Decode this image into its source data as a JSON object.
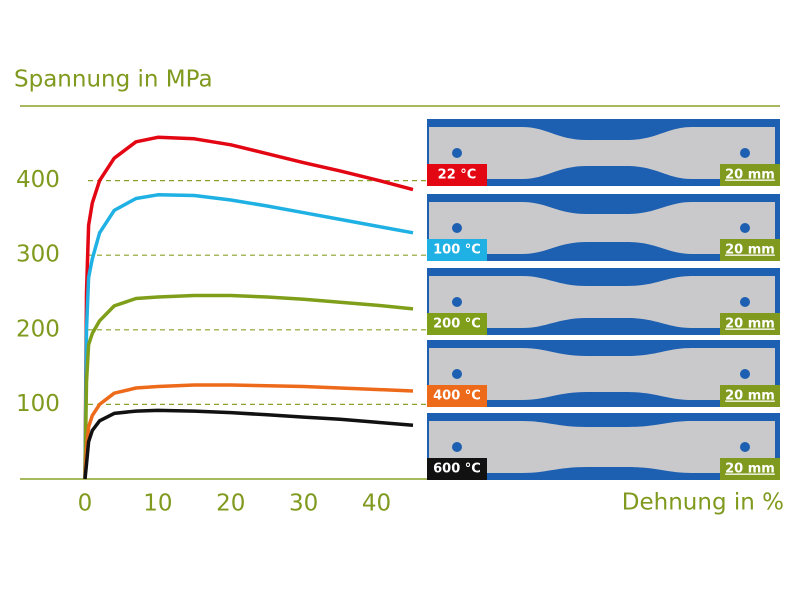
{
  "chart_data": {
    "type": "line",
    "y_label": "Spannung in MPa",
    "x_label": "Dehnung in %",
    "x": [
      0,
      0.2,
      0.5,
      1,
      2,
      4,
      7,
      10,
      15,
      20,
      25,
      30,
      35,
      40,
      45
    ],
    "series": [
      {
        "name": "22 °C",
        "color": "#e30613",
        "values": [
          0,
          250,
          340,
          370,
          400,
          430,
          452,
          458,
          456,
          448,
          436,
          424,
          413,
          401,
          388
        ]
      },
      {
        "name": "100 °C",
        "color": "#1fb1e3",
        "values": [
          0,
          200,
          270,
          295,
          330,
          360,
          376,
          381,
          380,
          374,
          366,
          357,
          348,
          339,
          330
        ]
      },
      {
        "name": "200 °C",
        "color": "#7f9f1b",
        "values": [
          0,
          130,
          180,
          195,
          212,
          232,
          242,
          244,
          246,
          246,
          244,
          241,
          237,
          233,
          228
        ]
      },
      {
        "name": "400 °C",
        "color": "#ee6a1b",
        "values": [
          0,
          40,
          70,
          85,
          100,
          115,
          122,
          124,
          126,
          126,
          125,
          124,
          122,
          120,
          118
        ]
      },
      {
        "name": "600 °C",
        "color": "#111111",
        "values": [
          0,
          20,
          50,
          65,
          78,
          88,
          91,
          92,
          91,
          89,
          86,
          83,
          80,
          76,
          72
        ]
      }
    ],
    "xlim": [
      0,
      45
    ],
    "xticks": [
      0,
      10,
      20,
      30,
      40
    ],
    "ylim": [
      0,
      500
    ],
    "yticks": [
      100,
      200,
      300,
      400
    ],
    "grid": true,
    "scale_bar": "20 mm"
  }
}
